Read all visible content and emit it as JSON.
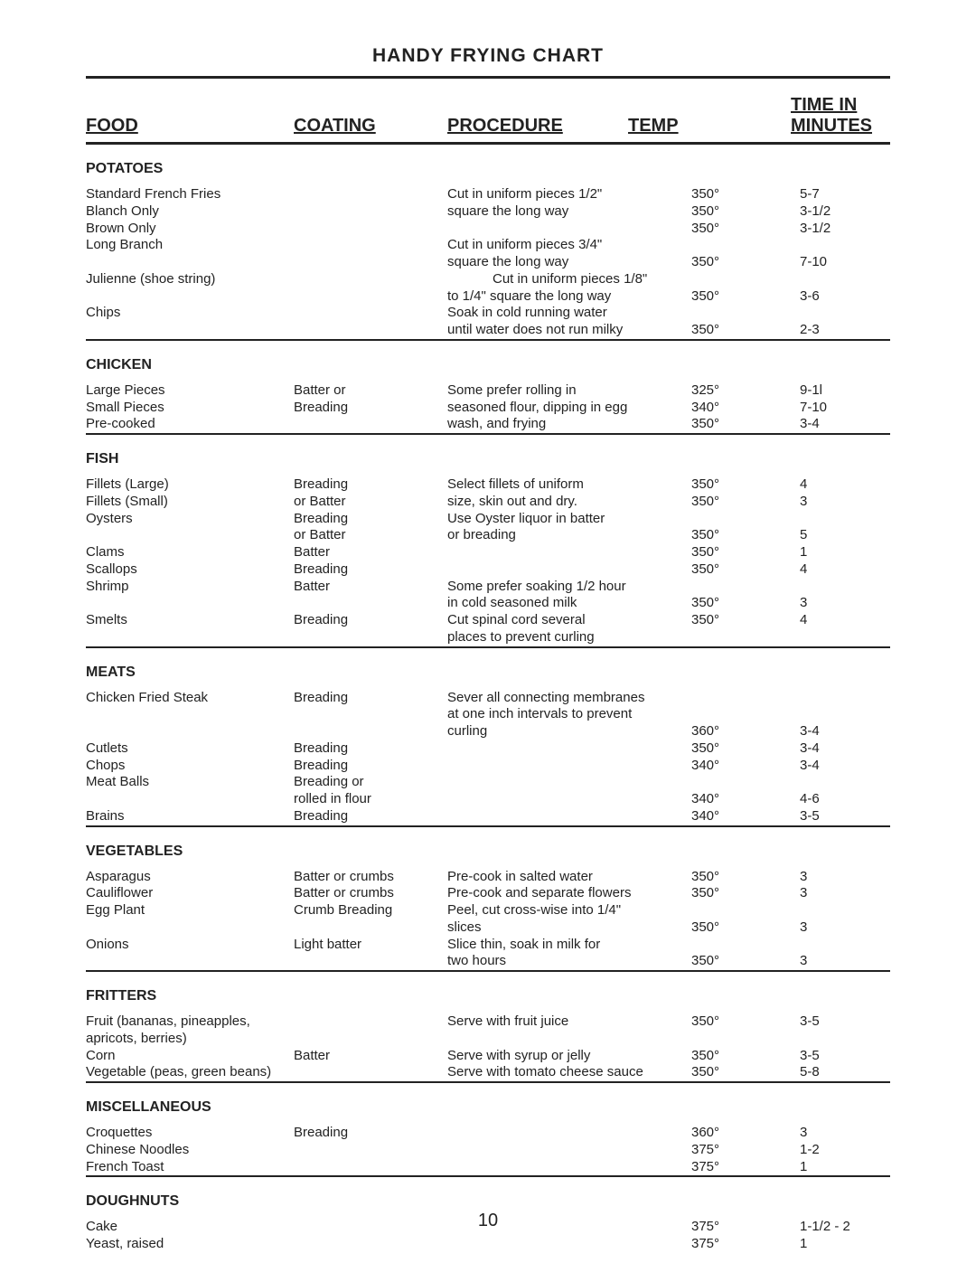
{
  "title": "HANDY FRYING CHART",
  "page_number": "10",
  "headers": {
    "food": "FOOD",
    "coating": "COATING",
    "procedure": "PROCEDURE",
    "temp": "TEMP",
    "time1": "TIME IN",
    "time2": "MINUTES"
  },
  "sections": [
    {
      "name": "POTATOES",
      "rows": [
        {
          "food": "Standard French Fries",
          "coating": "",
          "proc": "Cut in uniform pieces 1/2\"",
          "temp": "350°",
          "time": "5-7"
        },
        {
          "food": "Blanch Only",
          "coating": "",
          "proc": "square the long way",
          "temp": "350°",
          "time": "3-1/2"
        },
        {
          "food": "Brown Only",
          "coating": "",
          "proc": "",
          "temp": "350°",
          "time": "3-1/2"
        },
        {
          "food": "Long Branch",
          "coating": "",
          "proc": "Cut in uniform pieces 3/4\"",
          "temp": "",
          "time": ""
        },
        {
          "food": "",
          "coating": "",
          "proc": "square the long way",
          "temp": "350°",
          "time": "7-10"
        },
        {
          "food": "Julienne (shoe string)",
          "coating": "",
          "proc": "Cut in uniform pieces 1/8\"",
          "proc_indent": true,
          "temp": "",
          "time": ""
        },
        {
          "food": "",
          "coating": "",
          "proc": "to 1/4\" square the long way",
          "temp": "350°",
          "time": "3-6"
        },
        {
          "food": "Chips",
          "coating": "",
          "proc": "Soak in cold running water",
          "temp": "",
          "time": ""
        },
        {
          "food": "",
          "coating": "",
          "proc": "until water does not run milky",
          "temp": "350°",
          "time": "2-3"
        }
      ]
    },
    {
      "name": "CHICKEN",
      "rows": [
        {
          "food": "Large Pieces",
          "coating": "Batter or",
          "proc": "Some prefer rolling in",
          "temp": "325°",
          "time": "9-1l"
        },
        {
          "food": "Small Pieces",
          "coating": "Breading",
          "proc": "seasoned flour, dipping in egg",
          "temp": "340°",
          "time": "7-10"
        },
        {
          "food": "Pre-cooked",
          "coating": "",
          "proc": "wash, and frying",
          "temp": "350°",
          "time": "3-4"
        }
      ]
    },
    {
      "name": "FISH",
      "rows": [
        {
          "food": "Fillets (Large)",
          "coating": "Breading",
          "proc": "Select fillets of uniform",
          "temp": "350°",
          "time": "4"
        },
        {
          "food": "Fillets (Small)",
          "coating": "or Batter",
          "proc": "size, skin out and dry.",
          "temp": "350°",
          "time": "3"
        },
        {
          "food": "Oysters",
          "coating": "Breading",
          "proc": "Use Oyster liquor in batter",
          "temp": "",
          "time": ""
        },
        {
          "food": "",
          "coating": "or Batter",
          "proc": "or breading",
          "temp": "350°",
          "time": "5"
        },
        {
          "food": "Clams",
          "coating": "Batter",
          "proc": "",
          "temp": "350°",
          "time": "1"
        },
        {
          "food": "Scallops",
          "coating": "Breading",
          "proc": "",
          "temp": "350°",
          "time": "4"
        },
        {
          "food": "Shrimp",
          "coating": "Batter",
          "proc": "Some prefer soaking 1/2 hour",
          "temp": "",
          "time": ""
        },
        {
          "food": "",
          "coating": "",
          "proc": "in cold seasoned milk",
          "temp": "350°",
          "time": "3"
        },
        {
          "food": "Smelts",
          "coating": "Breading",
          "proc": "Cut spinal cord several",
          "temp": "350°",
          "time": "4"
        },
        {
          "food": "",
          "coating": "",
          "proc": "places to prevent curling",
          "temp": "",
          "time": ""
        }
      ]
    },
    {
      "name": "MEATS",
      "rows": [
        {
          "food": "Chicken Fried Steak",
          "coating": "Breading",
          "proc": "Sever all connecting membranes",
          "temp": "",
          "time": ""
        },
        {
          "food": "",
          "coating": "",
          "proc": "at one inch intervals to prevent",
          "temp": "",
          "time": ""
        },
        {
          "food": "",
          "coating": "",
          "proc": "curling",
          "temp": "360°",
          "time": "3-4"
        },
        {
          "food": "Cutlets",
          "coating": "Breading",
          "proc": "",
          "temp": "350°",
          "time": "3-4"
        },
        {
          "food": "Chops",
          "coating": "Breading",
          "proc": "",
          "temp": "340°",
          "time": "3-4"
        },
        {
          "food": "Meat Balls",
          "coating": "Breading or",
          "proc": "",
          "temp": "",
          "time": ""
        },
        {
          "food": "",
          "coating": "rolled in flour",
          "proc": "",
          "temp": "340°",
          "time": "4-6"
        },
        {
          "food": "Brains",
          "coating": "Breading",
          "proc": "",
          "temp": "340°",
          "time": "3-5"
        }
      ]
    },
    {
      "name": "VEGETABLES",
      "rows": [
        {
          "food": "Asparagus",
          "coating": "Batter or crumbs",
          "proc": "Pre-cook in salted water",
          "temp": "350°",
          "time": "3"
        },
        {
          "food": "Cauliflower",
          "coating": "Batter or crumbs",
          "proc": "Pre-cook and separate flowers",
          "temp": "350°",
          "time": "3"
        },
        {
          "food": "Egg Plant",
          "coating": "Crumb Breading",
          "proc": "Peel, cut cross-wise into 1/4\"",
          "temp": "",
          "time": ""
        },
        {
          "food": "",
          "coating": "",
          "proc": "slices",
          "temp": "350°",
          "time": "3"
        },
        {
          "food": "Onions",
          "coating": "Light batter",
          "proc": "Slice thin, soak in milk for",
          "temp": "",
          "time": ""
        },
        {
          "food": "",
          "coating": "",
          "proc": "two hours",
          "temp": "350°",
          "time": "3"
        }
      ]
    },
    {
      "name": "FRITTERS",
      "rows": [
        {
          "food": "Fruit (bananas, pineapples, apricots, berries)",
          "coating": "",
          "proc": "Serve with fruit juice",
          "temp": "350°",
          "time": "3-5"
        },
        {
          "food": "Corn",
          "coating": "Batter",
          "proc": "Serve with syrup or jelly",
          "temp": "350°",
          "time": "3-5"
        },
        {
          "food": "Vegetable (peas, green beans)",
          "coating": "",
          "proc": "Serve with tomato cheese sauce",
          "temp": "350°",
          "time": "5-8"
        }
      ]
    },
    {
      "name": "MISCELLANEOUS",
      "rows": [
        {
          "food": "Croquettes",
          "coating": "Breading",
          "proc": "",
          "temp": "360°",
          "time": "3"
        },
        {
          "food": "Chinese Noodles",
          "coating": "",
          "proc": "",
          "temp": "375°",
          "time": "1-2"
        },
        {
          "food": "French Toast",
          "coating": "",
          "proc": "",
          "temp": "375°",
          "time": "1"
        }
      ]
    },
    {
      "name": "DOUGHNUTS",
      "rows": [
        {
          "food": "Cake",
          "coating": "",
          "proc": "",
          "temp": "375°",
          "time": "1-1/2 - 2"
        },
        {
          "food": "Yeast, raised",
          "coating": "",
          "proc": "",
          "temp": "375°",
          "time": "1"
        }
      ],
      "no_rule_after": true
    }
  ]
}
